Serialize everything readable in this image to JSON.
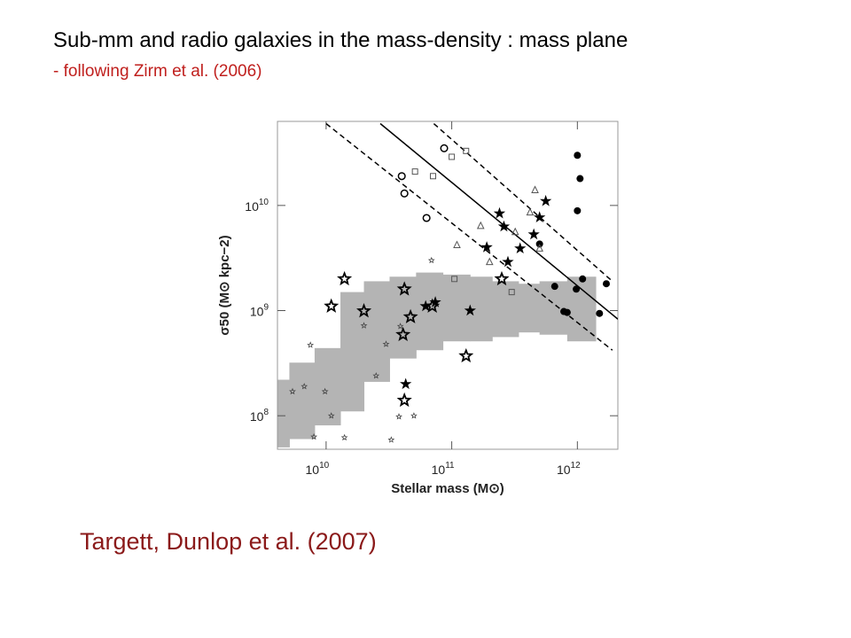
{
  "slide": {
    "title": "Sub-mm and radio galaxies  in the mass-density : mass plane",
    "subtitle": "- following Zirm et al. (2006)",
    "credit": "Targett, Dunlop et al. (2007)"
  },
  "chart_data": {
    "type": "scatter",
    "x_label": "Stellar mass (M⊙)",
    "y_label": "σ50 (M⊙ kpc−2)",
    "xscale": "log",
    "yscale": "log",
    "xlim": [
      4100000000.0,
      2100000000000.0
    ],
    "ylim": [
      48000000.0,
      63000000000.0
    ],
    "xticks": [
      {
        "value": 10000000000.0,
        "label": "10^10"
      },
      {
        "value": 100000000000.0,
        "label": "10^11"
      },
      {
        "value": 1000000000000.0,
        "label": "10^12"
      }
    ],
    "yticks": [
      {
        "value": 100000000.0,
        "label": "10^8"
      },
      {
        "value": 1000000000.0,
        "label": "10^9"
      },
      {
        "value": 10000000000.0,
        "label": "10^10"
      }
    ],
    "region": {
      "color": "#b4b4b4",
      "bins": [
        4100000000.0,
        5100000000.0,
        8100000000.0,
        13000000000.0,
        20000000000.0,
        32000000000.0,
        52000000000.0,
        85000000000.0,
        140000000000.0,
        210000000000.0,
        340000000000.0,
        500000000000.0,
        830000000000.0,
        1400000000000.0
      ],
      "upper": [
        220000000.0,
        320000000.0,
        440000000.0,
        1500000000.0,
        1900000000.0,
        2100000000.0,
        2300000000.0,
        2200000000.0,
        2100000000.0,
        1900000000.0,
        1800000000.0,
        1900000000.0,
        2100000000.0
      ],
      "lower": [
        50000000.0,
        60000000.0,
        81000000.0,
        110000000.0,
        210000000.0,
        350000000.0,
        420000000.0,
        510000000.0,
        510000000.0,
        560000000.0,
        620000000.0,
        590000000.0,
        510000000.0
      ]
    },
    "lines": [
      {
        "style": "solid",
        "color": "#000000",
        "x": [
          27000000000.0,
          2100000000000.0
        ],
        "values": [
          60000000000.0,
          830000000.0
        ]
      },
      {
        "style": "dashed",
        "color": "#000000",
        "x": [
          72000000000.0,
          1900000000000.0
        ],
        "values": [
          60000000000.0,
          1900000000.0
        ]
      },
      {
        "style": "dashed",
        "color": "#000000",
        "x": [
          10000000000.0,
          1900000000000.0
        ],
        "values": [
          60000000000.0,
          420000000.0
        ]
      }
    ],
    "series": [
      {
        "marker": "filled-circle",
        "color": "#000000",
        "x": [
          1000000000000.0,
          1050000000000.0,
          1000000000000.0,
          500000000000.0,
          660000000000.0,
          1100000000000.0,
          980000000000.0,
          780000000000.0,
          830000000000.0,
          1500000000000.0,
          1700000000000.0
        ],
        "values": [
          30000000000.0,
          18000000000.0,
          8900000000.0,
          4300000000.0,
          1700000000.0,
          2000000000.0,
          1600000000.0,
          980000000.0,
          960000000.0,
          940000000.0,
          1800000000.0
        ]
      },
      {
        "marker": "open-circle",
        "color": "#000000",
        "x": [
          40000000000.0,
          42000000000.0,
          63000000000.0,
          87000000000.0
        ],
        "values": [
          19000000000.0,
          13000000000.0,
          7600000000.0,
          35000000000.0
        ]
      },
      {
        "marker": "open-square",
        "color": "#555555",
        "x": [
          130000000000.0,
          100000000000.0,
          71000000000.0,
          51000000000.0,
          105000000000.0,
          300000000000.0
        ],
        "values": [
          33000000000.0,
          29000000000.0,
          19000000000.0,
          21000000000.0,
          2000000000.0,
          1500000000.0
        ]
      },
      {
        "marker": "open-triangle",
        "color": "#555555",
        "x": [
          460000000000.0,
          420000000000.0,
          170000000000.0,
          320000000000.0,
          110000000000.0,
          500000000000.0,
          200000000000.0
        ],
        "values": [
          14000000000.0,
          8600000000.0,
          6400000000.0,
          5600000000.0,
          4200000000.0,
          3900000000.0,
          2900000000.0
        ]
      },
      {
        "marker": "filled-star",
        "color": "#000000",
        "x": [
          560000000000.0,
          240000000000.0,
          500000000000.0,
          260000000000.0,
          450000000000.0,
          190000000000.0,
          350000000000.0,
          280000000000.0,
          43000000000.0,
          62000000000.0,
          74000000000.0,
          140000000000.0
        ],
        "values": [
          11000000000.0,
          8400000000.0,
          7700000000.0,
          6300000000.0,
          5300000000.0,
          4000000000.0,
          3900000000.0,
          2900000000.0,
          200000000.0,
          1100000000.0,
          1200000000.0,
          1000000000.0
        ]
      },
      {
        "marker": "open-star",
        "color": "#000000",
        "x": [
          14000000000.0,
          11000000000.0,
          42000000000.0,
          20000000000.0,
          47000000000.0,
          41000000000.0,
          130000000000.0,
          42000000000.0,
          250000000000.0,
          70000000000.0
        ],
        "values": [
          2000000000.0,
          1100000000.0,
          1600000000.0,
          990000000.0,
          870000000.0,
          590000000.0,
          370000000.0,
          140000000.0,
          2000000000.0,
          1100000000.0
        ]
      },
      {
        "marker": "small-star",
        "color": "#444444",
        "x": [
          69000000000.0,
          7500000000.0,
          6700000000.0,
          5400000000.0,
          9800000000.0,
          11000000000.0,
          14000000000.0,
          8000000000.0,
          20000000000.0,
          30000000000.0,
          25000000000.0,
          38000000000.0,
          50000000000.0,
          33000000000.0,
          39000000000.0
        ],
        "values": [
          3000000000.0,
          470000000.0,
          190000000.0,
          170000000.0,
          170000000.0,
          100000000.0,
          62000000.0,
          63000000.0,
          720000000.0,
          480000000.0,
          240000000.0,
          98000000.0,
          100000000.0,
          59000000.0,
          710000000.0
        ]
      }
    ]
  }
}
